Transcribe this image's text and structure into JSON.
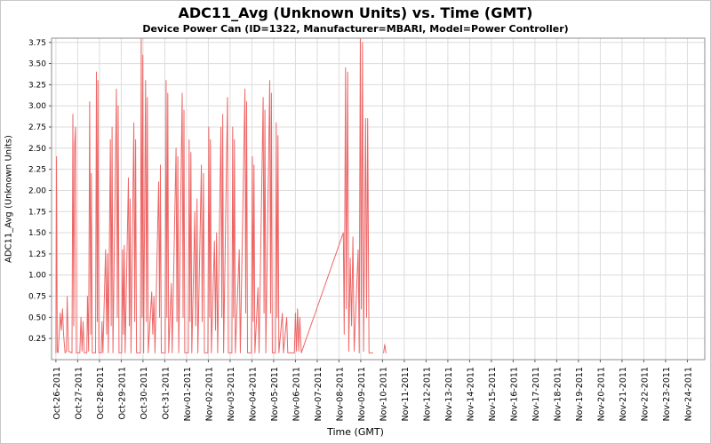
{
  "chart_data": {
    "type": "line",
    "title": "ADC11_Avg (Unknown Units) vs. Time (GMT)",
    "subtitle": "Device Power Can (ID=1322, Manufacturer=MBARI, Model=Power Controller)",
    "xlabel": "Time (GMT)",
    "ylabel": "ADC11_Avg (Unknown Units)",
    "grid": true,
    "legend_position": "none",
    "series_color": "#ee6666",
    "grid_color": "#dcdcdc",
    "axis_color": "#8c8c8c",
    "tick_color": "#555555",
    "xlim": [
      -0.2,
      29.8
    ],
    "ylim": [
      0,
      3.8
    ],
    "y_ticks": [
      0.25,
      0.5,
      0.75,
      1.0,
      1.25,
      1.5,
      1.75,
      2.0,
      2.25,
      2.5,
      2.75,
      3.0,
      3.25,
      3.5,
      3.75
    ],
    "x_tick_labels": [
      "Oct-26-2011",
      "Oct-27-2011",
      "Oct-28-2011",
      "Oct-29-2011",
      "Oct-30-2011",
      "Oct-31-2011",
      "Nov-01-2011",
      "Nov-02-2011",
      "Nov-03-2011",
      "Nov-04-2011",
      "Nov-05-2011",
      "Nov-06-2011",
      "Nov-07-2011",
      "Nov-08-2011",
      "Nov-09-2011",
      "Nov-10-2011",
      "Nov-11-2011",
      "Nov-12-2011",
      "Nov-13-2011",
      "Nov-14-2011",
      "Nov-15-2011",
      "Nov-16-2011",
      "Nov-17-2011",
      "Nov-18-2011",
      "Nov-19-2011",
      "Nov-20-2011",
      "Nov-21-2011",
      "Nov-22-2011",
      "Nov-23-2011",
      "Nov-24-2011"
    ],
    "x_unit": "days since Oct-26-2011 00:00 GMT",
    "series": [
      {
        "name": "ADC11_Avg",
        "points": [
          [
            0.0,
            0.08
          ],
          [
            0.03,
            2.4
          ],
          [
            0.06,
            0.1
          ],
          [
            0.1,
            0.08
          ],
          [
            0.15,
            0.3
          ],
          [
            0.2,
            0.55
          ],
          [
            0.25,
            0.35
          ],
          [
            0.3,
            0.6
          ],
          [
            0.35,
            0.3
          ],
          [
            0.42,
            0.08
          ],
          [
            0.48,
            0.1
          ],
          [
            0.52,
            0.75
          ],
          [
            0.58,
            0.1
          ],
          [
            0.74,
            0.08
          ],
          [
            0.78,
            2.9
          ],
          [
            0.82,
            0.4
          ],
          [
            0.86,
            2.55
          ],
          [
            0.9,
            2.75
          ],
          [
            0.94,
            0.08
          ],
          [
            1.1,
            0.08
          ],
          [
            1.15,
            0.5
          ],
          [
            1.2,
            0.1
          ],
          [
            1.25,
            0.45
          ],
          [
            1.3,
            0.08
          ],
          [
            1.42,
            0.08
          ],
          [
            1.45,
            0.75
          ],
          [
            1.5,
            0.1
          ],
          [
            1.55,
            3.05
          ],
          [
            1.6,
            0.3
          ],
          [
            1.63,
            2.2
          ],
          [
            1.67,
            0.08
          ],
          [
            1.82,
            0.08
          ],
          [
            1.86,
            3.4
          ],
          [
            1.9,
            0.45
          ],
          [
            1.93,
            3.3
          ],
          [
            1.97,
            0.08
          ],
          [
            2.08,
            0.08
          ],
          [
            2.12,
            0.45
          ],
          [
            2.16,
            0.08
          ],
          [
            2.28,
            1.3
          ],
          [
            2.33,
            0.3
          ],
          [
            2.37,
            1.25
          ],
          [
            2.41,
            0.08
          ],
          [
            2.5,
            2.6
          ],
          [
            2.54,
            0.4
          ],
          [
            2.58,
            2.75
          ],
          [
            2.62,
            0.08
          ],
          [
            2.78,
            3.2
          ],
          [
            2.82,
            0.5
          ],
          [
            2.86,
            3.0
          ],
          [
            2.9,
            0.08
          ],
          [
            3.02,
            0.08
          ],
          [
            3.06,
            1.3
          ],
          [
            3.1,
            0.3
          ],
          [
            3.14,
            1.35
          ],
          [
            3.18,
            0.08
          ],
          [
            3.33,
            2.15
          ],
          [
            3.37,
            0.4
          ],
          [
            3.41,
            1.9
          ],
          [
            3.45,
            0.08
          ],
          [
            3.58,
            2.8
          ],
          [
            3.62,
            0.45
          ],
          [
            3.66,
            2.6
          ],
          [
            3.7,
            0.08
          ],
          [
            3.88,
            0.08
          ],
          [
            3.92,
            3.79
          ],
          [
            3.96,
            0.5
          ],
          [
            3.99,
            3.6
          ],
          [
            4.03,
            0.08
          ],
          [
            4.12,
            3.3
          ],
          [
            4.16,
            0.45
          ],
          [
            4.2,
            3.1
          ],
          [
            4.24,
            0.08
          ],
          [
            4.4,
            0.8
          ],
          [
            4.45,
            0.3
          ],
          [
            4.5,
            0.75
          ],
          [
            4.55,
            0.08
          ],
          [
            4.72,
            2.1
          ],
          [
            4.76,
            0.5
          ],
          [
            4.8,
            2.3
          ],
          [
            4.84,
            0.08
          ],
          [
            5.02,
            0.08
          ],
          [
            5.06,
            3.3
          ],
          [
            5.1,
            0.5
          ],
          [
            5.14,
            3.15
          ],
          [
            5.18,
            0.08
          ],
          [
            5.3,
            0.9
          ],
          [
            5.34,
            0.08
          ],
          [
            5.52,
            2.5
          ],
          [
            5.56,
            0.45
          ],
          [
            5.6,
            2.4
          ],
          [
            5.64,
            0.08
          ],
          [
            5.8,
            3.15
          ],
          [
            5.84,
            0.5
          ],
          [
            5.88,
            2.95
          ],
          [
            5.92,
            0.08
          ],
          [
            6.08,
            0.08
          ],
          [
            6.12,
            2.6
          ],
          [
            6.16,
            0.45
          ],
          [
            6.2,
            2.45
          ],
          [
            6.24,
            0.08
          ],
          [
            6.38,
            1.75
          ],
          [
            6.42,
            0.4
          ],
          [
            6.48,
            1.9
          ],
          [
            6.52,
            0.08
          ],
          [
            6.68,
            2.3
          ],
          [
            6.72,
            0.45
          ],
          [
            6.78,
            2.2
          ],
          [
            6.82,
            0.08
          ],
          [
            6.98,
            0.08
          ],
          [
            7.02,
            2.75
          ],
          [
            7.06,
            0.5
          ],
          [
            7.1,
            2.6
          ],
          [
            7.14,
            0.08
          ],
          [
            7.28,
            1.4
          ],
          [
            7.33,
            0.35
          ],
          [
            7.38,
            1.5
          ],
          [
            7.43,
            0.08
          ],
          [
            7.58,
            2.75
          ],
          [
            7.62,
            0.5
          ],
          [
            7.66,
            2.9
          ],
          [
            7.7,
            0.08
          ],
          [
            7.88,
            3.1
          ],
          [
            7.92,
            0.08
          ],
          [
            8.08,
            0.08
          ],
          [
            8.12,
            2.75
          ],
          [
            8.16,
            0.5
          ],
          [
            8.2,
            2.6
          ],
          [
            8.24,
            0.08
          ],
          [
            8.42,
            1.3
          ],
          [
            8.47,
            0.08
          ],
          [
            8.68,
            3.2
          ],
          [
            8.72,
            0.55
          ],
          [
            8.76,
            3.05
          ],
          [
            8.8,
            0.08
          ],
          [
            8.98,
            0.08
          ],
          [
            9.02,
            2.4
          ],
          [
            9.06,
            0.45
          ],
          [
            9.1,
            2.3
          ],
          [
            9.14,
            0.08
          ],
          [
            9.28,
            0.85
          ],
          [
            9.33,
            0.08
          ],
          [
            9.52,
            3.1
          ],
          [
            9.56,
            0.55
          ],
          [
            9.6,
            2.95
          ],
          [
            9.64,
            0.08
          ],
          [
            9.82,
            3.3
          ],
          [
            9.86,
            0.55
          ],
          [
            9.9,
            3.15
          ],
          [
            9.94,
            0.08
          ],
          [
            10.08,
            0.08
          ],
          [
            10.12,
            2.8
          ],
          [
            10.16,
            0.5
          ],
          [
            10.2,
            2.65
          ],
          [
            10.24,
            0.08
          ],
          [
            10.4,
            0.55
          ],
          [
            10.45,
            0.08
          ],
          [
            10.6,
            0.5
          ],
          [
            10.65,
            0.08
          ],
          [
            10.95,
            0.08
          ],
          [
            11.0,
            0.55
          ],
          [
            11.05,
            0.1
          ],
          [
            11.1,
            0.6
          ],
          [
            11.15,
            0.1
          ],
          [
            11.2,
            0.5
          ],
          [
            11.27,
            0.08
          ],
          [
            13.2,
            1.5
          ],
          [
            13.24,
            0.3
          ],
          [
            13.3,
            3.45
          ],
          [
            13.34,
            0.6
          ],
          [
            13.4,
            3.4
          ],
          [
            13.45,
            0.1
          ],
          [
            13.52,
            1.2
          ],
          [
            13.58,
            0.4
          ],
          [
            13.64,
            1.45
          ],
          [
            13.7,
            0.1
          ],
          [
            13.88,
            1.3
          ],
          [
            13.93,
            0.08
          ],
          [
            13.98,
            3.79
          ],
          [
            14.03,
            0.6
          ],
          [
            14.08,
            3.75
          ],
          [
            14.13,
            0.1
          ],
          [
            14.22,
            2.85
          ],
          [
            14.27,
            0.5
          ],
          [
            14.32,
            2.85
          ],
          [
            14.38,
            0.08
          ],
          [
            14.55,
            0.08
          ],
          null,
          [
            15.05,
            0.08
          ],
          [
            15.1,
            0.18
          ],
          [
            15.16,
            0.08
          ]
        ]
      }
    ]
  }
}
